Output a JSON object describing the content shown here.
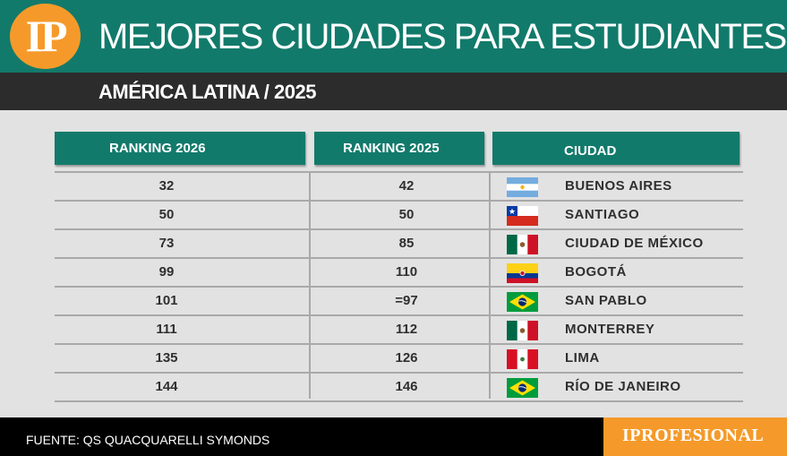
{
  "header": {
    "logo_text": "IP",
    "title": "MEJORES CIUDADES PARA ESTUDIANTES",
    "subtitle": "AMÉRICA LATINA / 2025"
  },
  "columns": [
    "RANKING 2026",
    "RANKING 2025",
    "CIUDAD"
  ],
  "rows": [
    {
      "rank_2026": "32",
      "rank_2025": "42",
      "city": "BUENOS AIRES",
      "flag": "argentina-flag-icon"
    },
    {
      "rank_2026": "50",
      "rank_2025": "50",
      "city": "SANTIAGO",
      "flag": "chile-flag-icon"
    },
    {
      "rank_2026": "73",
      "rank_2025": "85",
      "city": "CIUDAD DE MÉXICO",
      "flag": "mexico-flag-icon"
    },
    {
      "rank_2026": "99",
      "rank_2025": "110",
      "city": "BOGOTÁ",
      "flag": "colombia-flag-icon"
    },
    {
      "rank_2026": "101",
      "rank_2025": "=97",
      "city": "SAN PABLO",
      "flag": "brazil-flag-icon"
    },
    {
      "rank_2026": "111",
      "rank_2025": "112",
      "city": "MONTERREY",
      "flag": "mexico-flag-icon"
    },
    {
      "rank_2026": "135",
      "rank_2025": "126",
      "city": "LIMA",
      "flag": "peru-flag-icon"
    },
    {
      "rank_2026": "144",
      "rank_2025": "146",
      "city": "RÍO DE JANEIRO",
      "flag": "brazil-flag-icon"
    }
  ],
  "footer": {
    "source": "FUENTE: QS QUACQUARELLI SYMONDS",
    "brand": "IPROFESIONAL"
  },
  "colors": {
    "teal": "#127a6b",
    "orange": "#f59a2a",
    "dark_bar": "#2c2c2c",
    "background": "#e2e2e2"
  }
}
